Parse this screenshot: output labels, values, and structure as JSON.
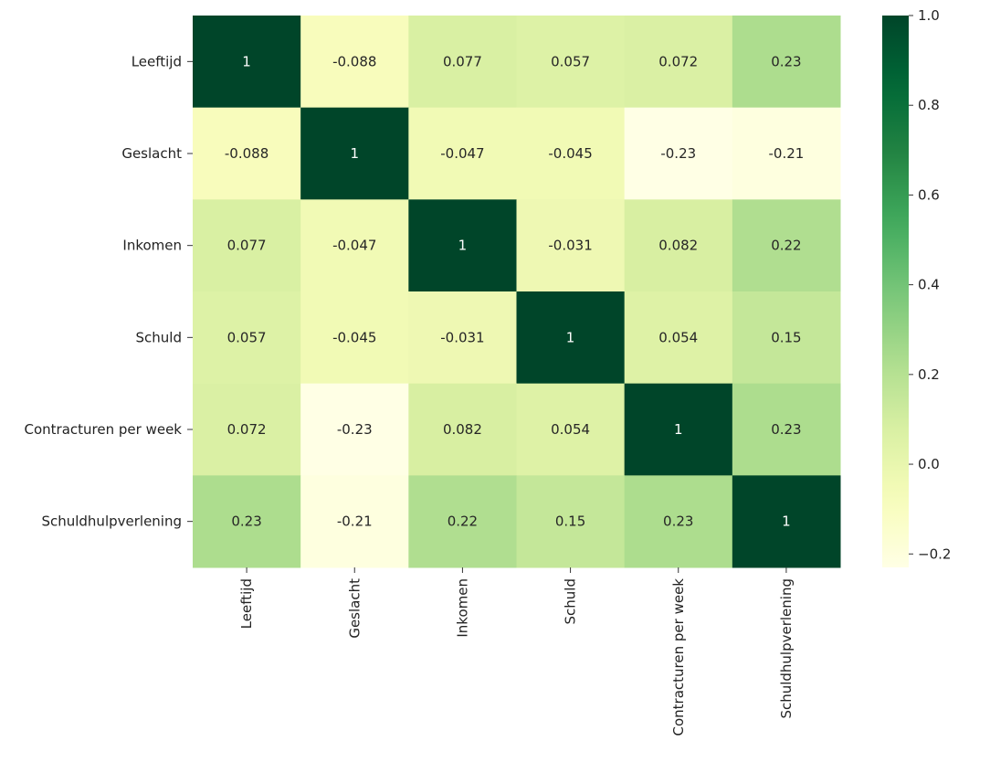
{
  "chart_data": {
    "type": "heatmap",
    "title": "",
    "labels": [
      "Leeftijd",
      "Geslacht",
      "Inkomen",
      "Schuld",
      "Contracturen per week",
      "Schuldhulpverlening"
    ],
    "values": [
      [
        1,
        -0.088,
        0.077,
        0.057,
        0.072,
        0.23
      ],
      [
        -0.088,
        1,
        -0.047,
        -0.045,
        -0.23,
        -0.21
      ],
      [
        0.077,
        -0.047,
        1,
        -0.031,
        0.082,
        0.22
      ],
      [
        0.057,
        -0.045,
        -0.031,
        1,
        0.054,
        0.15
      ],
      [
        0.072,
        -0.23,
        0.082,
        0.054,
        1,
        0.23
      ],
      [
        0.23,
        -0.21,
        0.22,
        0.15,
        0.23,
        1
      ]
    ],
    "value_labels": [
      [
        "1",
        "-0.088",
        "0.077",
        "0.057",
        "0.072",
        "0.23"
      ],
      [
        "-0.088",
        "1",
        "-0.047",
        "-0.045",
        "-0.23",
        "-0.21"
      ],
      [
        "0.077",
        "-0.047",
        "1",
        "-0.031",
        "0.082",
        "0.22"
      ],
      [
        "0.057",
        "-0.045",
        "-0.031",
        "1",
        "0.054",
        "0.15"
      ],
      [
        "0.072",
        "-0.23",
        "0.082",
        "0.054",
        "1",
        "0.23"
      ],
      [
        "0.23",
        "-0.21",
        "0.22",
        "0.15",
        "0.23",
        "1"
      ]
    ],
    "colormap": "YlGn",
    "color_range": [
      -0.23,
      1
    ],
    "colorbar_ticks": [
      1.0,
      0.8,
      0.6,
      0.4,
      0.2,
      0.0,
      -0.2
    ],
    "colorbar_tick_labels": [
      "1.0",
      "0.8",
      "0.6",
      "0.4",
      "0.2",
      "0.0",
      "−0.2"
    ],
    "xlabel": "",
    "ylabel": ""
  }
}
